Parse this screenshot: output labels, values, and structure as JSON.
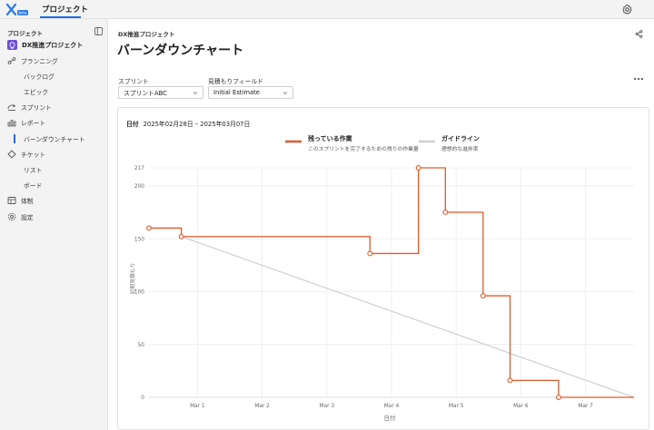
{
  "topbar": {
    "logo_badge": "beta",
    "tab_label": "プロジェクト"
  },
  "sidebar": {
    "header": "プロジェクト",
    "project_name": "DX推進プロジェクト",
    "items": [
      {
        "label": "プランニング",
        "icon": "planning-icon"
      },
      {
        "label": "バックログ",
        "sub": true
      },
      {
        "label": "エピック",
        "sub": true
      },
      {
        "label": "スプリント",
        "icon": "sprint-icon"
      },
      {
        "label": "レポート",
        "icon": "report-icon"
      },
      {
        "label": "バーンダウンチャート",
        "sub": true,
        "active": true
      },
      {
        "label": "チケット",
        "icon": "ticket-icon"
      },
      {
        "label": "リスト",
        "sub": true
      },
      {
        "label": "ボード",
        "sub": true
      },
      {
        "label": "体制",
        "icon": "team-icon"
      },
      {
        "label": "設定",
        "icon": "settings-icon"
      }
    ]
  },
  "main": {
    "breadcrumb": "DX推進プロジェクト",
    "title": "バーンダウンチャート",
    "filters": {
      "sprint_label": "スプリント",
      "sprint_value": "スプリントABC",
      "estimate_label": "見積もりフィールド",
      "estimate_value": "Initial Estimate"
    },
    "date_range_label": "日付",
    "date_range_value": "2025年02月28日 – 2025年03月07日"
  },
  "colors": {
    "accent": "#1a6fe0",
    "remaining": "#e05a2b",
    "guideline": "#cfcfcf"
  },
  "chart_data": {
    "type": "line",
    "xlabel": "日付",
    "ylabel": "初期見積もり",
    "x_ticks": [
      "Mar 1",
      "Mar 2",
      "Mar 3",
      "Mar 4",
      "Mar 5",
      "Mar 6",
      "Mar 7"
    ],
    "x_range": [
      "2025-02-28T06:00",
      "2025-03-07T18:00"
    ],
    "y_ticks": [
      0,
      50,
      100,
      150,
      200,
      217
    ],
    "ylim": [
      0,
      217
    ],
    "series": [
      {
        "name": "残っている作業",
        "description": "このスプリントを完了するための残りの作業量",
        "style": "step",
        "points": [
          [
            "2025-02-28T06:00",
            160
          ],
          [
            "2025-02-28T18:00",
            152
          ],
          [
            "2025-03-03T16:00",
            136
          ],
          [
            "2025-03-04T10:00",
            217
          ],
          [
            "2025-03-04T20:00",
            175
          ],
          [
            "2025-03-05T10:00",
            96
          ],
          [
            "2025-03-05T20:00",
            16
          ],
          [
            "2025-03-06T14:00",
            0
          ],
          [
            "2025-03-07T18:00",
            0
          ]
        ]
      },
      {
        "name": "ガイドライン",
        "description": "理想的な進捗率",
        "style": "line",
        "points": [
          [
            "2025-02-28T18:00",
            152
          ],
          [
            "2025-03-07T18:00",
            0
          ]
        ]
      }
    ]
  }
}
